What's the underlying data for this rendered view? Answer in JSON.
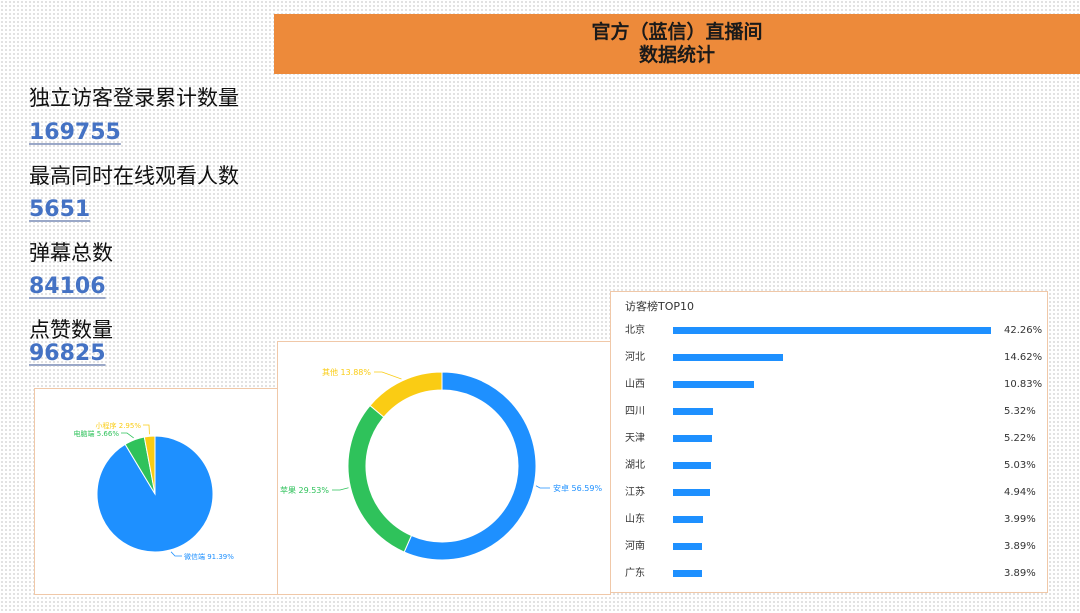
{
  "header": {
    "line1": "官方（蓝信）直播间",
    "line2": "数据统计"
  },
  "stats": [
    {
      "label": "独立访客登录累计数量",
      "value": "169755"
    },
    {
      "label": "最高同时在线观看人数",
      "value": "5651"
    },
    {
      "label": "弹幕总数",
      "value": "84106"
    },
    {
      "label": "点赞数量",
      "value": "96825"
    }
  ],
  "chart_data": [
    {
      "type": "pie",
      "labels": [
        "微信端",
        "电脑端",
        "小程序"
      ],
      "values": [
        91.39,
        5.66,
        2.95
      ],
      "data_labels": [
        "微信端 91.39%",
        "电脑端 5.66%",
        "小程序 2.95%"
      ],
      "colors": [
        "#1e90ff",
        "#2fc25b",
        "#facc14"
      ]
    },
    {
      "type": "pie",
      "donut": true,
      "labels": [
        "安卓",
        "苹果",
        "其他"
      ],
      "values": [
        56.59,
        29.53,
        13.88
      ],
      "data_labels": [
        "安卓 56.59%",
        "苹果 29.53%",
        "其他 13.88%"
      ],
      "colors": [
        "#1e90ff",
        "#2fc25b",
        "#facc14"
      ]
    },
    {
      "type": "bar",
      "orientation": "horizontal",
      "title": "访客榜TOP10",
      "categories": [
        "北京",
        "河北",
        "山西",
        "四川",
        "天津",
        "湖北",
        "江苏",
        "山东",
        "河南",
        "广东"
      ],
      "values": [
        42.26,
        14.62,
        10.83,
        5.32,
        5.22,
        5.03,
        4.94,
        3.99,
        3.89,
        3.89
      ],
      "value_labels": [
        "42.26%",
        "14.62%",
        "10.83%",
        "5.32%",
        "5.22%",
        "5.03%",
        "4.94%",
        "3.99%",
        "3.89%",
        "3.89%"
      ],
      "color": "#1e90ff"
    }
  ]
}
